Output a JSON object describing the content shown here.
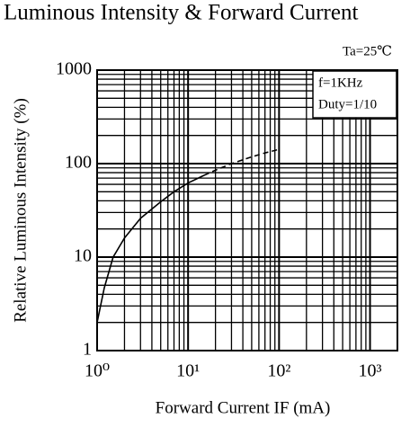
{
  "chart_data": {
    "type": "line",
    "title": "Luminous Intensity & Forward Current",
    "x_label": "Forward Current IF (mA)",
    "y_label": "Relative Luminous Intensity (%)",
    "annotations": [
      "Ta=25℃",
      "f=1KHz",
      "Duty=1/10"
    ],
    "series": [
      {
        "color": "#000000",
        "dash": "solid",
        "x": [
          1,
          1.2,
          1.5,
          2,
          3,
          5,
          7,
          10,
          15
        ],
        "values": [
          2,
          4.7,
          10,
          16,
          26,
          39,
          50,
          62,
          75
        ]
      },
      {
        "color": "#000000",
        "dash": "dashed",
        "x": [
          15,
          20,
          30,
          50,
          70,
          100
        ],
        "values": [
          75,
          85,
          100,
          118,
          130,
          142
        ]
      }
    ],
    "xlog": true,
    "ylog": true,
    "xlim": [
      1,
      2000
    ],
    "ylim": [
      1,
      1000
    ],
    "xticks": [
      {
        "value": 1,
        "label": "10⁰"
      },
      {
        "value": 10,
        "label": "10¹"
      },
      {
        "value": 100,
        "label": "10²"
      },
      {
        "value": 1000,
        "label": "10³"
      }
    ],
    "yticks": [
      1,
      10,
      100,
      1000
    ],
    "grid": true,
    "minor_grid": true
  }
}
